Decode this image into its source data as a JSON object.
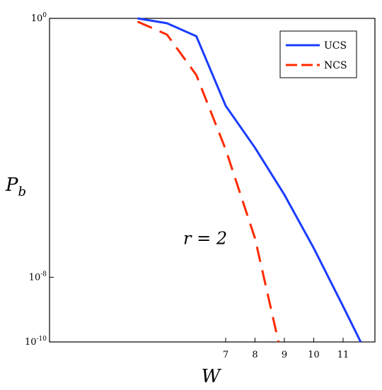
{
  "chart_data": {
    "type": "line",
    "title": "",
    "xlabel": "W",
    "ylabel": "P_b",
    "yscale": "log",
    "xlim": [
      4,
      11.7
    ],
    "ylim_exponents": [
      -10,
      0
    ],
    "ytick_labels": [
      {
        "base": "10",
        "exp": "0",
        "value_exp": 0
      },
      {
        "base": "10",
        "exp": "-8",
        "value_exp": -8
      },
      {
        "base": "10",
        "exp": "-10",
        "value_exp": -10
      }
    ],
    "xticks": [
      7,
      8,
      9,
      10,
      11
    ],
    "grid": false,
    "legend": {
      "position": "top-right"
    },
    "annotation": {
      "text": "r = 2",
      "x": 7.0,
      "y_exp": -6.8
    },
    "series": [
      {
        "name": "UCS",
        "color": "#1a3cff",
        "style": "solid",
        "points": [
          [
            4,
            0
          ],
          [
            5,
            -0.15
          ],
          [
            6,
            -0.55
          ],
          [
            7,
            -2.7
          ],
          [
            8,
            -4.0
          ],
          [
            9,
            -5.45
          ],
          [
            10,
            -7.1
          ],
          [
            11,
            -8.9
          ],
          [
            11.6,
            -10
          ]
        ]
      },
      {
        "name": "NCS",
        "color": "#ff2a00",
        "style": "dashed",
        "points": [
          [
            4,
            -0.1
          ],
          [
            5,
            -0.5
          ],
          [
            6,
            -1.75
          ],
          [
            7,
            -4.05
          ],
          [
            8,
            -6.8
          ],
          [
            8.8,
            -10
          ]
        ]
      }
    ]
  }
}
